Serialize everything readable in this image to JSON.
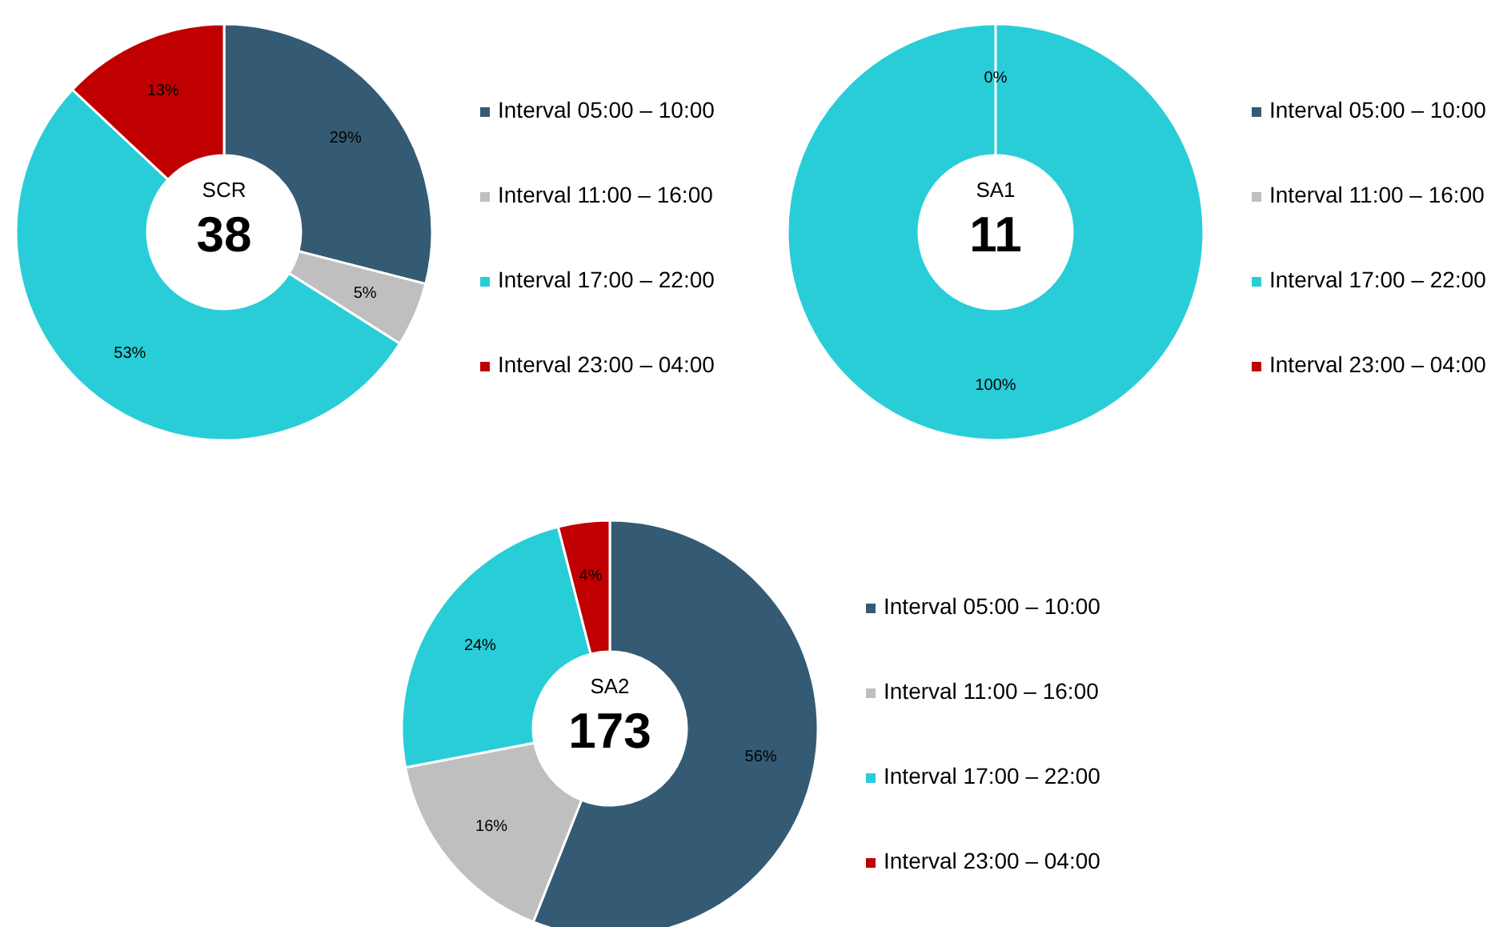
{
  "chart_data": [
    {
      "type": "donut",
      "title": "SCR",
      "annotations": [
        "38"
      ],
      "categories": [
        "Interval 05:00 – 10:00",
        "Interval 11:00 – 16:00",
        "Interval 17:00 – 22:00",
        "Interval 23:00 – 04:00"
      ],
      "values": [
        29,
        5,
        53,
        13
      ],
      "value_labels": [
        "29%",
        "5%",
        "53%",
        "13%"
      ],
      "colors": [
        "#345b73",
        "#bfbfbf",
        "#29cdd8",
        "#c00000"
      ],
      "legend": "right"
    },
    {
      "type": "donut",
      "title": "SA1",
      "annotations": [
        "11"
      ],
      "categories": [
        "Interval 05:00 – 10:00",
        "Interval 11:00 – 16:00",
        "Interval 17:00 – 22:00",
        "Interval 23:00 – 04:00"
      ],
      "values": [
        0,
        0,
        100,
        0
      ],
      "value_labels": [
        "0%",
        null,
        "100%",
        null
      ],
      "colors": [
        "#345b73",
        "#bfbfbf",
        "#29cdd8",
        "#c00000"
      ],
      "legend": "right"
    },
    {
      "type": "donut",
      "title": "SA2",
      "annotations": [
        "173"
      ],
      "categories": [
        "Interval 05:00 – 10:00",
        "Interval 11:00 – 16:00",
        "Interval 17:00 – 22:00",
        "Interval 23:00 – 04:00"
      ],
      "values": [
        56,
        16,
        24,
        4
      ],
      "value_labels": [
        "56%",
        "16%",
        "24%",
        "4%"
      ],
      "colors": [
        "#345b73",
        "#bfbfbf",
        "#29cdd8",
        "#c00000"
      ],
      "legend": "right"
    }
  ]
}
